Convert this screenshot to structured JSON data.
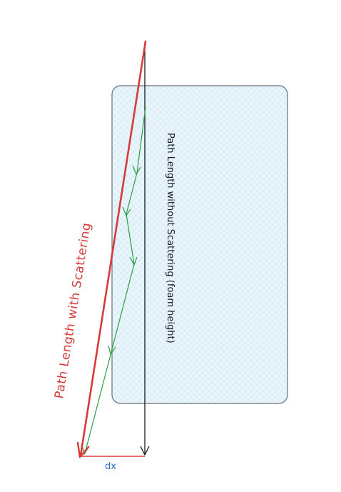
{
  "labels": {
    "path_with_scattering": "Path Length with Scattering",
    "path_without_scattering": "Path Length without Scattering (foam height)",
    "dx": "dx"
  },
  "colors": {
    "background": "#ffffff",
    "foam_fill": "#e7f4fb",
    "foam_hatch": "#bfe0f1",
    "foam_border": "#6b6f75",
    "scattering_path": "#d63a3a",
    "straight_path": "#1a1a1a",
    "scatter_steps": "#2e9e44",
    "dx_line": "#d63a3a",
    "dx_label": "#1f6fc5"
  },
  "icons": {
    "arrowhead": "arrow-icon"
  }
}
